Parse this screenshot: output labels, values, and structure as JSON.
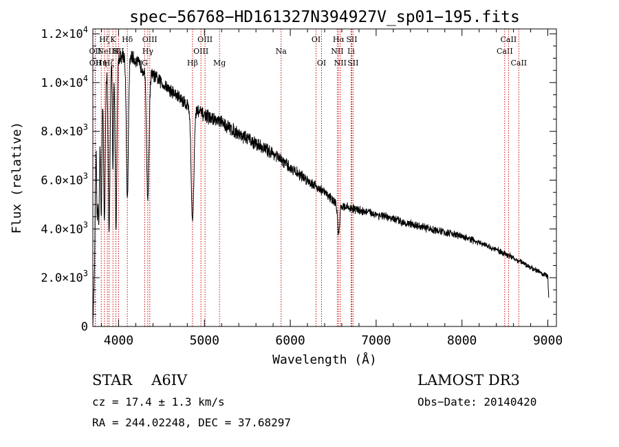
{
  "chart_data": {
    "type": "line",
    "title": "spec−56768−HD161327N394927V_sp01−195.fits",
    "xlabel": "Wavelength (Å)",
    "ylabel": "Flux (relative)",
    "xlim": [
      3700,
      9100
    ],
    "ylim": [
      0,
      12200
    ],
    "xticks": [
      4000,
      5000,
      6000,
      7000,
      8000,
      9000
    ],
    "xtick_labels": [
      "4000",
      "5000",
      "6000",
      "7000",
      "8000",
      "9000"
    ],
    "yticks": [
      0,
      2000,
      4000,
      6000,
      8000,
      10000,
      12000
    ],
    "ytick_labels": [
      {
        "mant": "0",
        "exp": ""
      },
      {
        "mant": "2.0×10",
        "exp": "3"
      },
      {
        "mant": "4.0×10",
        "exp": "3"
      },
      {
        "mant": "6.0×10",
        "exp": "3"
      },
      {
        "mant": "8.0×10",
        "exp": "3"
      },
      {
        "mant": "1.0×10",
        "exp": "4"
      },
      {
        "mant": "1.2×10",
        "exp": "4"
      }
    ],
    "line_color": "#000000",
    "marker_color": "#cc0000",
    "spectrum": {
      "continuum": [
        [
          3700,
          0
        ],
        [
          3720,
          2500
        ],
        [
          3740,
          9000
        ],
        [
          3800,
          10000
        ],
        [
          3900,
          10700
        ],
        [
          4000,
          11000
        ],
        [
          4100,
          11200
        ],
        [
          4200,
          10900
        ],
        [
          4300,
          10500
        ],
        [
          4400,
          10300
        ],
        [
          4500,
          10000
        ],
        [
          4600,
          9700
        ],
        [
          4700,
          9400
        ],
        [
          4800,
          9100
        ],
        [
          4900,
          8900
        ],
        [
          5000,
          8650
        ],
        [
          5200,
          8350
        ],
        [
          5400,
          7900
        ],
        [
          5600,
          7500
        ],
        [
          5800,
          7100
        ],
        [
          6000,
          6500
        ],
        [
          6200,
          6000
        ],
        [
          6400,
          5500
        ],
        [
          6550,
          5000
        ],
        [
          6700,
          4850
        ],
        [
          7000,
          4600
        ],
        [
          7500,
          4100
        ],
        [
          8000,
          3700
        ],
        [
          8500,
          3000
        ],
        [
          9000,
          2050
        ],
        [
          9010,
          1200
        ]
      ],
      "absorption": [
        {
          "center": 3750,
          "depth": 4500,
          "width": 8
        },
        {
          "center": 3770,
          "depth": 5000,
          "width": 8
        },
        {
          "center": 3798,
          "depth": 5500,
          "width": 8
        },
        {
          "center": 3835,
          "depth": 6000,
          "width": 9
        },
        {
          "center": 3889,
          "depth": 6800,
          "width": 10
        },
        {
          "center": 3934,
          "depth": 4500,
          "width": 6
        },
        {
          "center": 3970,
          "depth": 7000,
          "width": 10
        },
        {
          "center": 4102,
          "depth": 6000,
          "width": 12
        },
        {
          "center": 4340,
          "depth": 5200,
          "width": 14
        },
        {
          "center": 4861,
          "depth": 4600,
          "width": 16
        },
        {
          "center": 6563,
          "depth": 1200,
          "width": 12
        }
      ],
      "noise": 260
    },
    "line_markers": [
      {
        "wavelength": 3727,
        "label": "OII",
        "row": 2
      },
      {
        "wavelength": 3729,
        "label": "OII",
        "row": 3
      },
      {
        "wavelength": 3798,
        "label": "Hη",
        "row": 3
      },
      {
        "wavelength": 3835,
        "label": "Hζ",
        "row": 1
      },
      {
        "wavelength": 3869,
        "label": "NeIII",
        "row": 2
      },
      {
        "wavelength": 3889,
        "label": "Hζ",
        "row": 3
      },
      {
        "wavelength": 3934,
        "label": "K",
        "row": 1
      },
      {
        "wavelength": 3969,
        "label": "H",
        "row": 2
      },
      {
        "wavelength": 4000,
        "label": "SII",
        "row": 2
      },
      {
        "wavelength": 4102,
        "label": "Hδ",
        "row": 1
      },
      {
        "wavelength": 4304,
        "label": "G",
        "row": 3
      },
      {
        "wavelength": 4340,
        "label": "Hγ",
        "row": 2
      },
      {
        "wavelength": 4363,
        "label": "OIII",
        "row": 1
      },
      {
        "wavelength": 4861,
        "label": "Hβ",
        "row": 3
      },
      {
        "wavelength": 4959,
        "label": "OIII",
        "row": 2
      },
      {
        "wavelength": 5007,
        "label": "OIII",
        "row": 1
      },
      {
        "wavelength": 5175,
        "label": "Mg",
        "row": 3
      },
      {
        "wavelength": 5893,
        "label": "Na",
        "row": 2
      },
      {
        "wavelength": 6300,
        "label": "OI",
        "row": 1
      },
      {
        "wavelength": 6364,
        "label": "OI",
        "row": 3
      },
      {
        "wavelength": 6548,
        "label": "NII",
        "row": 2
      },
      {
        "wavelength": 6563,
        "label": "Hα",
        "row": 1
      },
      {
        "wavelength": 6583,
        "label": "NII",
        "row": 3
      },
      {
        "wavelength": 6708,
        "label": "Li",
        "row": 2
      },
      {
        "wavelength": 6716,
        "label": "SII",
        "row": 1
      },
      {
        "wavelength": 6731,
        "label": "SII",
        "row": 3
      },
      {
        "wavelength": 8498,
        "label": "CaII",
        "row": 2
      },
      {
        "wavelength": 8542,
        "label": "CaII",
        "row": 1
      },
      {
        "wavelength": 8662,
        "label": "CaII",
        "row": 3
      }
    ]
  },
  "info": {
    "class_label": "STAR",
    "subclass": "A6IV",
    "survey": "LAMOST DR3",
    "cz": "cz = 17.4 ± 1.3 km/s",
    "obs_date": "Obs−Date: 20140420",
    "radec": "RA = 244.02248, DEC =  37.68297"
  }
}
